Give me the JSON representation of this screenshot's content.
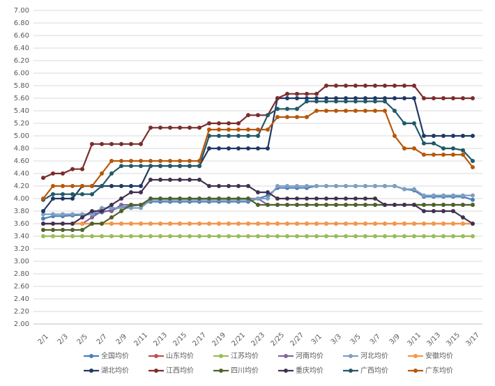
{
  "chart_data": {
    "type": "line",
    "categories": [
      "2/1",
      null,
      "2/3",
      null,
      "2/5",
      null,
      "2/7",
      null,
      "2/9",
      null,
      "2/11",
      null,
      "2/13",
      null,
      "2/15",
      null,
      "2/17",
      null,
      "2/19",
      null,
      "2/21",
      null,
      "2/23",
      null,
      "2/25",
      null,
      "2/27",
      null,
      "3/1",
      null,
      "3/3",
      null,
      "3/5",
      null,
      "3/7",
      null,
      "3/9",
      null,
      "3/11",
      null,
      "3/13",
      null,
      "3/15",
      null,
      "3/17"
    ],
    "ylim": [
      2,
      7
    ],
    "yticks": [
      {
        "value": 2,
        "label": "2.00"
      },
      {
        "value": 2.2,
        "label": "2.20"
      },
      {
        "value": 2.4,
        "label": "2.40"
      },
      {
        "value": 2.6,
        "label": "2.60"
      },
      {
        "value": 2.8,
        "label": "2.80"
      },
      {
        "value": 3,
        "label": "3.00"
      },
      {
        "value": 3.2,
        "label": "3.20"
      },
      {
        "value": 3.4,
        "label": "3.40"
      },
      {
        "value": 3.6,
        "label": "3.60"
      },
      {
        "value": 3.8,
        "label": "3.80"
      },
      {
        "value": 4,
        "label": "4.00"
      },
      {
        "value": 4.2,
        "label": "4.20"
      },
      {
        "value": 4.4,
        "label": "4.40"
      },
      {
        "value": 4.6,
        "label": "4.60"
      },
      {
        "value": 4.8,
        "label": "4.80"
      },
      {
        "value": 5,
        "label": "5.00"
      },
      {
        "value": 5.2,
        "label": "5.20"
      },
      {
        "value": 5.4,
        "label": "5.40"
      },
      {
        "value": 5.6,
        "label": "5.60"
      },
      {
        "value": 5.8,
        "label": "5.80"
      },
      {
        "value": 6,
        "label": "6.00"
      },
      {
        "value": 6.2,
        "label": "6.20"
      },
      {
        "value": 6.4,
        "label": "6.40"
      },
      {
        "value": 6.6,
        "label": "6.60"
      },
      {
        "value": 6.8,
        "label": "6.80"
      },
      {
        "value": 7,
        "label": "7.00"
      }
    ],
    "grid": true,
    "series": [
      {
        "name": "全国均价",
        "color": "#4a7ebb",
        "values": [
          3.68,
          3.72,
          3.72,
          3.73,
          3.74,
          3.75,
          3.78,
          3.82,
          3.86,
          3.88,
          3.9,
          3.95,
          3.95,
          3.95,
          3.95,
          3.95,
          3.95,
          3.95,
          3.95,
          3.95,
          3.95,
          3.95,
          4.0,
          4.05,
          4.17,
          4.17,
          4.17,
          4.17,
          4.2,
          4.2,
          4.2,
          4.2,
          4.2,
          4.2,
          4.2,
          4.2,
          4.2,
          4.15,
          4.13,
          4.03,
          4.03,
          4.03,
          4.03,
          4.03,
          3.98
        ]
      },
      {
        "name": "山东均价",
        "color": "#c0504d",
        "values": [
          3.6,
          3.6,
          3.6,
          3.6,
          3.6,
          3.6,
          3.6,
          3.6,
          3.6,
          3.6,
          3.6,
          3.6,
          3.6,
          3.6,
          3.6,
          3.6,
          3.6,
          3.6,
          3.6,
          3.6,
          3.6,
          3.6,
          3.6,
          3.6,
          3.6,
          3.6,
          3.6,
          3.6,
          3.6,
          3.6,
          3.6,
          3.6,
          3.6,
          3.6,
          3.6,
          3.6,
          3.6,
          3.6,
          3.6,
          3.6,
          3.6,
          3.6,
          3.6,
          3.6,
          3.6
        ]
      },
      {
        "name": "江苏均价",
        "color": "#9bbb59",
        "values": [
          3.4,
          3.4,
          3.4,
          3.4,
          3.4,
          3.4,
          3.4,
          3.4,
          3.4,
          3.4,
          3.4,
          3.4,
          3.4,
          3.4,
          3.4,
          3.4,
          3.4,
          3.4,
          3.4,
          3.4,
          3.4,
          3.4,
          3.4,
          3.4,
          3.4,
          3.4,
          3.4,
          3.4,
          3.4,
          3.4,
          3.4,
          3.4,
          3.4,
          3.4,
          3.4,
          3.4,
          3.4,
          3.4,
          3.4,
          3.4,
          3.4,
          3.4,
          3.4,
          3.4,
          3.4
        ]
      },
      {
        "name": "河南均价",
        "color": "#8064a2",
        "values": [
          3.6,
          3.6,
          3.6,
          3.6,
          3.6,
          3.7,
          3.8,
          3.8,
          3.9,
          3.9,
          3.9,
          4.0,
          4.0,
          4.0,
          4.0,
          4.0,
          4.0,
          4.0,
          4.0,
          4.0,
          4.0,
          4.0,
          4.0,
          3.9,
          3.9,
          3.9,
          3.9,
          3.9,
          3.9,
          3.9,
          3.9,
          3.9,
          3.9,
          3.9,
          3.9,
          3.9,
          3.9,
          3.9,
          3.9,
          3.9,
          3.9,
          3.9,
          3.9,
          3.9,
          3.9
        ]
      },
      {
        "name": "河北均价",
        "color": "#7f9fbf",
        "values": [
          3.75,
          3.75,
          3.75,
          3.75,
          3.75,
          3.75,
          3.85,
          3.85,
          3.85,
          3.85,
          3.85,
          3.98,
          3.98,
          3.98,
          3.98,
          3.98,
          3.98,
          3.98,
          3.98,
          3.98,
          3.98,
          3.98,
          4.0,
          4.0,
          4.2,
          4.2,
          4.2,
          4.2,
          4.2,
          4.2,
          4.2,
          4.2,
          4.2,
          4.2,
          4.2,
          4.2,
          4.2,
          4.15,
          4.15,
          4.05,
          4.05,
          4.05,
          4.05,
          4.05,
          4.05
        ]
      },
      {
        "name": "安徽均价",
        "color": "#f79646",
        "values": [
          3.6,
          3.6,
          3.6,
          3.6,
          3.6,
          3.6,
          3.6,
          3.6,
          3.6,
          3.6,
          3.6,
          3.6,
          3.6,
          3.6,
          3.6,
          3.6,
          3.6,
          3.6,
          3.6,
          3.6,
          3.6,
          3.6,
          3.6,
          3.6,
          3.6,
          3.6,
          3.6,
          3.6,
          3.6,
          3.6,
          3.6,
          3.6,
          3.6,
          3.6,
          3.6,
          3.6,
          3.6,
          3.6,
          3.6,
          3.6,
          3.6,
          3.6,
          3.6,
          3.6,
          3.6
        ]
      },
      {
        "name": "湖北均价",
        "color": "#1f3864",
        "values": [
          3.8,
          4.0,
          4.0,
          4.0,
          4.2,
          4.2,
          4.2,
          4.2,
          4.2,
          4.2,
          4.2,
          4.52,
          4.52,
          4.52,
          4.52,
          4.52,
          4.52,
          4.8,
          4.8,
          4.8,
          4.8,
          4.8,
          4.8,
          4.8,
          5.6,
          5.6,
          5.6,
          5.6,
          5.6,
          5.6,
          5.6,
          5.6,
          5.6,
          5.6,
          5.6,
          5.6,
          5.6,
          5.6,
          5.6,
          5.0,
          5.0,
          5.0,
          5.0,
          5.0,
          5.0
        ]
      },
      {
        "name": "江西均价",
        "color": "#7b2c2c",
        "values": [
          4.33,
          4.4,
          4.4,
          4.47,
          4.47,
          4.87,
          4.87,
          4.87,
          4.87,
          4.87,
          4.87,
          5.13,
          5.13,
          5.13,
          5.13,
          5.13,
          5.13,
          5.2,
          5.2,
          5.2,
          5.2,
          5.33,
          5.33,
          5.33,
          5.6,
          5.67,
          5.67,
          5.67,
          5.67,
          5.8,
          5.8,
          5.8,
          5.8,
          5.8,
          5.8,
          5.8,
          5.8,
          5.8,
          5.8,
          5.6,
          5.6,
          5.6,
          5.6,
          5.6,
          5.6
        ]
      },
      {
        "name": "四川均价",
        "color": "#4f6228",
        "values": [
          3.5,
          3.5,
          3.5,
          3.5,
          3.5,
          3.6,
          3.6,
          3.7,
          3.8,
          3.9,
          3.9,
          4.0,
          4.0,
          4.0,
          4.0,
          4.0,
          4.0,
          4.0,
          4.0,
          4.0,
          4.0,
          4.0,
          3.9,
          3.9,
          3.9,
          3.9,
          3.9,
          3.9,
          3.9,
          3.9,
          3.9,
          3.9,
          3.9,
          3.9,
          3.9,
          3.9,
          3.9,
          3.9,
          3.9,
          3.9,
          3.9,
          3.9,
          3.9,
          3.9,
          3.9
        ]
      },
      {
        "name": "重庆均价",
        "color": "#403151",
        "values": [
          3.6,
          3.6,
          3.6,
          3.6,
          3.7,
          3.8,
          3.8,
          3.9,
          4.0,
          4.1,
          4.1,
          4.3,
          4.3,
          4.3,
          4.3,
          4.3,
          4.3,
          4.2,
          4.2,
          4.2,
          4.2,
          4.2,
          4.1,
          4.1,
          4.0,
          4.0,
          4.0,
          4.0,
          4.0,
          4.0,
          4.0,
          4.0,
          4.0,
          4.0,
          4.0,
          3.9,
          3.9,
          3.9,
          3.9,
          3.8,
          3.8,
          3.8,
          3.8,
          3.7,
          3.6
        ]
      },
      {
        "name": "广西均价",
        "color": "#215968",
        "values": [
          3.98,
          4.07,
          4.07,
          4.07,
          4.07,
          4.07,
          4.2,
          4.4,
          4.52,
          4.52,
          4.52,
          4.52,
          4.52,
          4.52,
          4.52,
          4.52,
          4.52,
          5.0,
          5.0,
          5.0,
          5.0,
          5.0,
          5.0,
          5.33,
          5.43,
          5.43,
          5.43,
          5.55,
          5.55,
          5.55,
          5.55,
          5.55,
          5.55,
          5.55,
          5.55,
          5.55,
          5.4,
          5.2,
          5.2,
          4.88,
          4.88,
          4.8,
          4.8,
          4.77,
          4.6
        ]
      },
      {
        "name": "广东均价",
        "color": "#b65708",
        "values": [
          4.0,
          4.2,
          4.2,
          4.2,
          4.2,
          4.2,
          4.4,
          4.6,
          4.6,
          4.6,
          4.6,
          4.6,
          4.6,
          4.6,
          4.6,
          4.6,
          4.6,
          5.1,
          5.1,
          5.1,
          5.1,
          5.1,
          5.1,
          5.1,
          5.3,
          5.3,
          5.3,
          5.3,
          5.4,
          5.4,
          5.4,
          5.4,
          5.4,
          5.4,
          5.4,
          5.4,
          5.0,
          4.8,
          4.8,
          4.7,
          4.7,
          4.7,
          4.7,
          4.7,
          4.5
        ]
      }
    ]
  }
}
